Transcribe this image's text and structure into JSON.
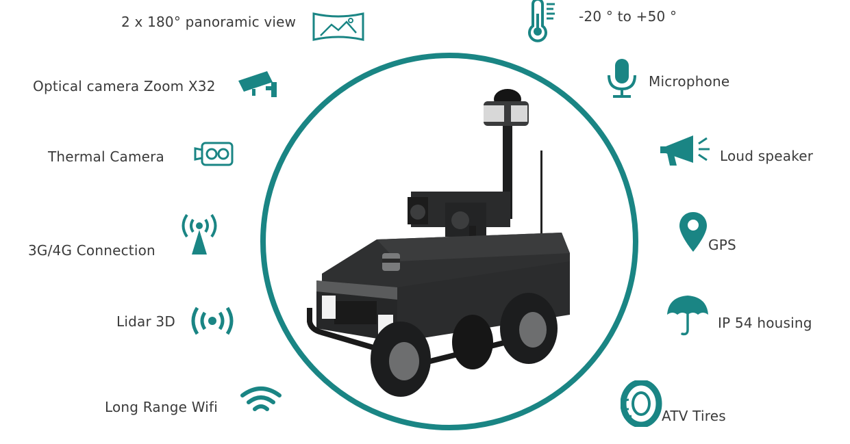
{
  "features_left": {
    "panoramic": "2 x 180° panoramic view",
    "optical": "Optical camera Zoom X32",
    "thermal": "Thermal Camera",
    "network": "3G/4G Connection",
    "lidar": "Lidar 3D",
    "wifi": "Long Range Wifi"
  },
  "features_right": {
    "temperature": "-20 ° to +50 °",
    "microphone": "Microphone",
    "speaker": "Loud speaker",
    "gps": "GPS",
    "housing": "IP 54 housing",
    "tires": "ATV Tires"
  },
  "colors": {
    "accent": "#1a8584",
    "text": "#3a3a3a",
    "robot_body": "#2a2b2c"
  },
  "icons": [
    "panorama-icon",
    "security-camera-icon",
    "thermal-camera-icon",
    "antenna-tower-icon",
    "lidar-signal-icon",
    "wifi-icon",
    "thermometer-icon",
    "microphone-icon",
    "megaphone-icon",
    "map-pin-icon",
    "umbrella-icon",
    "tire-icon"
  ]
}
